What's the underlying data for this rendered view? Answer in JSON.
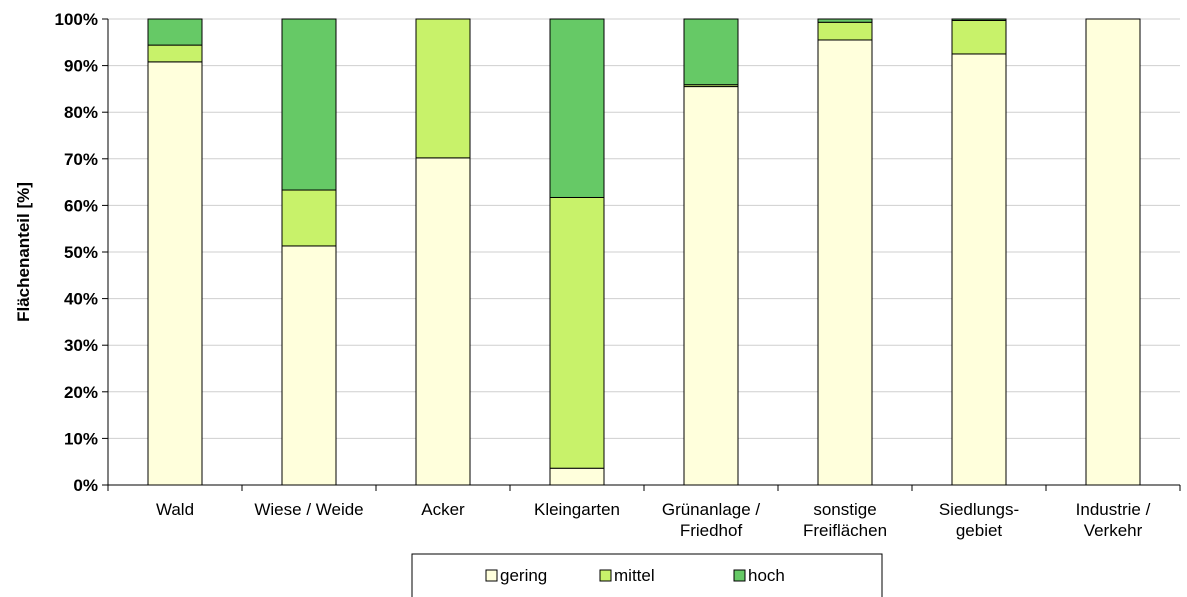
{
  "chart_data": {
    "type": "bar",
    "stacked": true,
    "percent": true,
    "ylabel": "Flächenanteil [%]",
    "ylim": [
      0,
      100
    ],
    "yticks": [
      "0%",
      "10%",
      "20%",
      "30%",
      "40%",
      "50%",
      "60%",
      "70%",
      "80%",
      "90%",
      "100%"
    ],
    "grid": true,
    "legend_position": "bottom",
    "categories": [
      [
        "Wald"
      ],
      [
        "Wiese / Weide"
      ],
      [
        "Acker"
      ],
      [
        "Kleingarten"
      ],
      [
        "Grünanlage /",
        "Friedhof"
      ],
      [
        "sonstige",
        "Freiflächen"
      ],
      [
        "Siedlungs-",
        "gebiet"
      ],
      [
        "Industrie /",
        "Verkehr"
      ]
    ],
    "series": [
      {
        "name": "gering",
        "color": "#FFFFDC",
        "values": [
          90.8,
          51.3,
          70.2,
          3.6,
          85.5,
          95.5,
          92.5,
          100.0
        ]
      },
      {
        "name": "mittel",
        "color": "#C8F26A",
        "values": [
          3.6,
          12.0,
          29.8,
          58.1,
          0.4,
          3.8,
          7.2,
          0.0
        ]
      },
      {
        "name": "hoch",
        "color": "#66C966",
        "values": [
          5.6,
          36.7,
          0.0,
          38.3,
          14.1,
          0.7,
          0.3,
          0.0
        ]
      }
    ]
  }
}
